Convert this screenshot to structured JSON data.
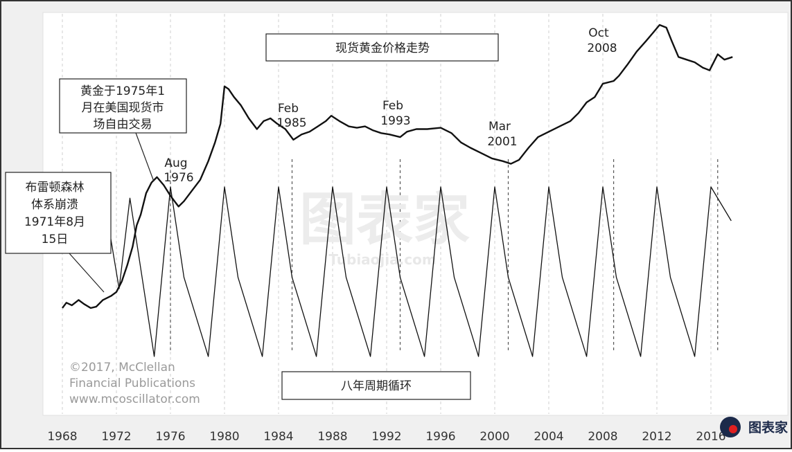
{
  "chart_data": {
    "type": "line",
    "title": "现货黄金价格走势",
    "subtitle": "八年周期循环",
    "xlim": [
      1968,
      2018
    ],
    "x_ticks": [
      "1968",
      "1972",
      "1976",
      "1980",
      "1984",
      "1988",
      "1992",
      "1996",
      "2000",
      "2004",
      "2008",
      "2012",
      "2016"
    ],
    "grid": true,
    "series": [
      {
        "style": "bold",
        "points": [
          [
            1968,
            1.0
          ],
          [
            1968.3,
            1.2
          ],
          [
            1968.7,
            1.1
          ],
          [
            1969.2,
            1.3
          ],
          [
            1969.6,
            1.15
          ],
          [
            1970.1,
            1.0
          ],
          [
            1970.5,
            1.05
          ],
          [
            1971.0,
            1.3
          ],
          [
            1971.6,
            1.45
          ],
          [
            1972.0,
            1.6
          ],
          [
            1972.4,
            2.0
          ],
          [
            1972.8,
            2.6
          ],
          [
            1973.2,
            3.3
          ],
          [
            1973.5,
            4.1
          ],
          [
            1973.8,
            4.5
          ],
          [
            1974.2,
            5.3
          ],
          [
            1974.6,
            5.7
          ],
          [
            1975.0,
            5.9
          ],
          [
            1975.5,
            5.6
          ],
          [
            1976.0,
            5.2
          ],
          [
            1976.6,
            4.8
          ],
          [
            1977.0,
            5.0
          ],
          [
            1977.6,
            5.4
          ],
          [
            1978.2,
            5.8
          ],
          [
            1978.8,
            6.5
          ],
          [
            1979.3,
            7.2
          ],
          [
            1979.7,
            7.9
          ],
          [
            1980.0,
            9.3
          ],
          [
            1980.3,
            9.2
          ],
          [
            1980.7,
            8.9
          ],
          [
            1981.2,
            8.6
          ],
          [
            1981.8,
            8.1
          ],
          [
            1982.4,
            7.7
          ],
          [
            1982.9,
            8.0
          ],
          [
            1983.4,
            8.1
          ],
          [
            1983.9,
            7.9
          ],
          [
            1984.5,
            7.7
          ],
          [
            1985.1,
            7.3
          ],
          [
            1985.7,
            7.5
          ],
          [
            1986.3,
            7.6
          ],
          [
            1986.9,
            7.8
          ],
          [
            1987.5,
            8.0
          ],
          [
            1987.9,
            8.2
          ],
          [
            1988.5,
            8.0
          ],
          [
            1989.2,
            7.8
          ],
          [
            1989.8,
            7.75
          ],
          [
            1990.4,
            7.8
          ],
          [
            1991.0,
            7.65
          ],
          [
            1991.6,
            7.55
          ],
          [
            1992.2,
            7.5
          ],
          [
            1993.0,
            7.4
          ],
          [
            1993.5,
            7.6
          ],
          [
            1994.2,
            7.7
          ],
          [
            1995.0,
            7.7
          ],
          [
            1996.0,
            7.75
          ],
          [
            1996.8,
            7.55
          ],
          [
            1997.5,
            7.2
          ],
          [
            1998.2,
            7.0
          ],
          [
            1999.0,
            6.8
          ],
          [
            1999.8,
            6.6
          ],
          [
            2000.6,
            6.5
          ],
          [
            2001.2,
            6.4
          ],
          [
            2001.8,
            6.55
          ],
          [
            2002.5,
            7.0
          ],
          [
            2003.2,
            7.4
          ],
          [
            2004.0,
            7.6
          ],
          [
            2004.8,
            7.8
          ],
          [
            2005.6,
            8.0
          ],
          [
            2006.2,
            8.3
          ],
          [
            2006.8,
            8.7
          ],
          [
            2007.4,
            8.9
          ],
          [
            2008.0,
            9.4
          ],
          [
            2008.8,
            9.5
          ],
          [
            2009.2,
            9.7
          ],
          [
            2009.8,
            10.1
          ],
          [
            2010.5,
            10.6
          ],
          [
            2011.2,
            11.0
          ],
          [
            2011.7,
            11.3
          ],
          [
            2012.2,
            11.6
          ],
          [
            2012.7,
            11.5
          ],
          [
            2013.1,
            11.0
          ],
          [
            2013.6,
            10.4
          ],
          [
            2014.2,
            10.3
          ],
          [
            2014.8,
            10.2
          ],
          [
            2015.4,
            10.0
          ],
          [
            2015.9,
            9.9
          ],
          [
            2016.5,
            10.5
          ],
          [
            2017.0,
            10.3
          ],
          [
            2017.6,
            10.4
          ]
        ]
      },
      {
        "style": "thin",
        "points": [
          [
            1971.5,
            0.6
          ],
          [
            1972.2,
            0.1
          ],
          [
            1973.0,
            0.9
          ],
          [
            1974.8,
            -0.5
          ],
          [
            1976.0,
            1.0
          ],
          [
            1977.0,
            0.2
          ],
          [
            1978.8,
            -0.5
          ],
          [
            1980.0,
            1.0
          ],
          [
            1981.0,
            0.2
          ],
          [
            1982.8,
            -0.5
          ],
          [
            1984.0,
            1.0
          ],
          [
            1985.0,
            0.2
          ],
          [
            1986.8,
            -0.5
          ],
          [
            1988.0,
            1.0
          ],
          [
            1989.0,
            0.2
          ],
          [
            1990.8,
            -0.5
          ],
          [
            1992.0,
            1.0
          ],
          [
            1993.0,
            0.2
          ],
          [
            1994.8,
            -0.5
          ],
          [
            1996.0,
            1.0
          ],
          [
            1997.0,
            0.2
          ],
          [
            1998.8,
            -0.5
          ],
          [
            2000.0,
            1.0
          ],
          [
            2001.0,
            0.2
          ],
          [
            2002.8,
            -0.5
          ],
          [
            2004.0,
            1.0
          ],
          [
            2005.0,
            0.2
          ],
          [
            2006.8,
            -0.5
          ],
          [
            2008.0,
            1.0
          ],
          [
            2009.0,
            0.2
          ],
          [
            2010.8,
            -0.5
          ],
          [
            2012.0,
            1.0
          ],
          [
            2013.0,
            0.2
          ],
          [
            2014.8,
            -0.5
          ],
          [
            2016.0,
            1.0
          ],
          [
            2017.5,
            0.7
          ]
        ]
      }
    ],
    "low_markers": [
      1976.0,
      1985.0,
      1993.0,
      2001.0,
      2008.8,
      2016.5
    ],
    "annotations": {
      "aug1976": [
        "Aug",
        "1976"
      ],
      "feb1985": [
        "Feb",
        "1985"
      ],
      "feb1993": [
        "Feb",
        "1993"
      ],
      "mar2001": [
        "Mar",
        "2001"
      ],
      "oct2008": [
        "Oct",
        "2008"
      ]
    },
    "note_bretton_woods": [
      "布雷顿森林",
      "体系崩溃",
      "1971年8月",
      "15日"
    ],
    "note_gold_trading": [
      "黄金于1975年1",
      "月在美国现货市",
      "场自由交易"
    ],
    "copyright": [
      "©2017, McClellan",
      "Financial Publications",
      "www.mcoscillator.com"
    ],
    "watermark": "图表家",
    "watermark_url": "Tubiaojia.com",
    "logo_text": "图表家",
    "colors": {
      "line": "#111111",
      "grid": "#c8c8c8",
      "frame_bg": "#ebebeb",
      "text": "#222222",
      "copyright": "#9a9a9a"
    }
  }
}
